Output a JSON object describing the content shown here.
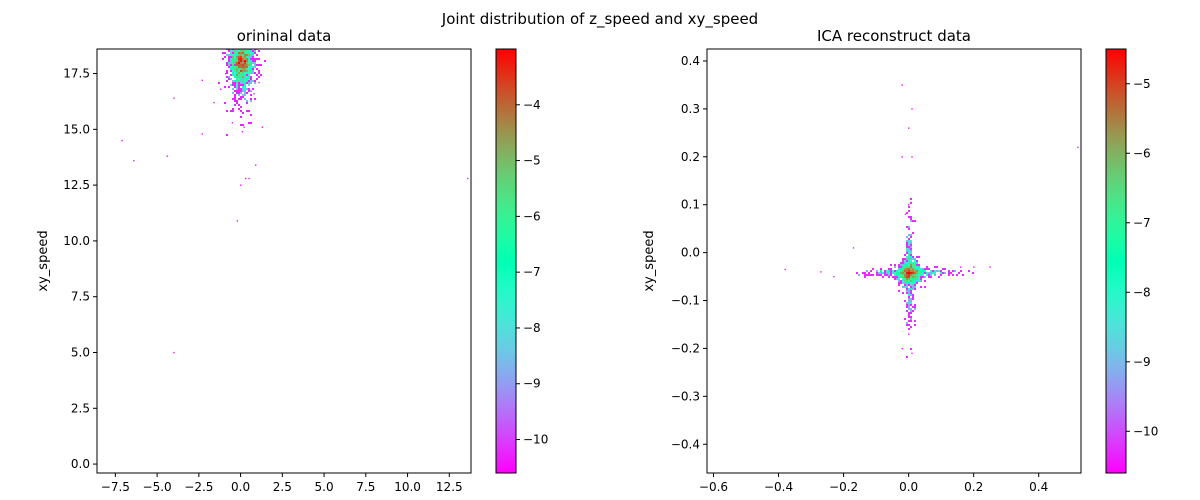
{
  "figure": {
    "suptitle": "Joint distribution of z_speed and xy_speed"
  },
  "chart_data": [
    {
      "type": "heatmap",
      "title": "orininal data",
      "xlabel": "",
      "ylabel": "xy_speed",
      "xlim": [
        -8.6,
        13.8
      ],
      "ylim": [
        -0.4,
        18.6
      ],
      "xticks": [
        -7.5,
        -5.0,
        -2.5,
        0.0,
        2.5,
        5.0,
        7.5,
        10.0,
        12.5
      ],
      "xtick_labels": [
        "−7.5",
        "−5.0",
        "−2.5",
        "0.0",
        "2.5",
        "5.0",
        "7.5",
        "10.0",
        "12.5"
      ],
      "yticks": [
        0.0,
        2.5,
        5.0,
        7.5,
        10.0,
        12.5,
        15.0,
        17.5
      ],
      "ytick_labels": [
        "0.0",
        "2.5",
        "5.0",
        "7.5",
        "10.0",
        "12.5",
        "15.0",
        "17.5"
      ],
      "colormap": "rainbow",
      "colorbar": {
        "range": [
          -10.6,
          -3.0
        ],
        "ticks": [
          -10,
          -9,
          -8,
          -7,
          -6,
          -5,
          -4
        ],
        "tick_labels": [
          "−10",
          "−9",
          "−8",
          "−7",
          "−6",
          "−5",
          "−4"
        ]
      },
      "grid": false,
      "density_center": [
        0.0,
        18.2
      ],
      "outlier_points": [
        [
          -7.1,
          14.5
        ],
        [
          -6.4,
          13.6
        ],
        [
          -4.4,
          13.8
        ],
        [
          -4.0,
          16.4
        ],
        [
          -4.0,
          5.0
        ],
        [
          -2.3,
          14.8
        ],
        [
          -2.3,
          17.2
        ],
        [
          -1.6,
          16.2
        ],
        [
          -0.2,
          10.9
        ],
        [
          0.0,
          12.5
        ],
        [
          0.3,
          12.8
        ],
        [
          0.5,
          12.8
        ],
        [
          0.1,
          14.9
        ],
        [
          0.2,
          15.1
        ],
        [
          -0.5,
          15.3
        ],
        [
          1.3,
          15.1
        ],
        [
          0.9,
          13.4
        ],
        [
          13.6,
          12.8
        ],
        [
          -1.2,
          16.8
        ],
        [
          0.8,
          16.6
        ],
        [
          -0.9,
          17.5
        ],
        [
          1.1,
          17.1
        ]
      ]
    },
    {
      "type": "heatmap",
      "title": "ICA reconstruct data",
      "xlabel": "",
      "ylabel": "xy_speed",
      "xlim": [
        -0.62,
        0.53
      ],
      "ylim": [
        -0.46,
        0.425
      ],
      "xticks": [
        -0.6,
        -0.4,
        -0.2,
        0.0,
        0.2,
        0.4
      ],
      "xtick_labels": [
        "−0.6",
        "−0.4",
        "−0.2",
        "0.0",
        "0.2",
        "0.4"
      ],
      "yticks": [
        -0.4,
        -0.3,
        -0.2,
        -0.1,
        0.0,
        0.1,
        0.2,
        0.3,
        0.4
      ],
      "ytick_labels": [
        "−0.4",
        "−0.3",
        "−0.2",
        "−0.1",
        "0.0",
        "0.1",
        "0.2",
        "0.3",
        "0.4"
      ],
      "colormap": "rainbow",
      "colorbar": {
        "range": [
          -10.6,
          -4.5
        ],
        "ticks": [
          -10,
          -9,
          -8,
          -7,
          -6,
          -5
        ],
        "tick_labels": [
          "−10",
          "−9",
          "−8",
          "−7",
          "−6",
          "−5"
        ]
      },
      "grid": false,
      "density_center": [
        0.0,
        -0.04
      ],
      "outlier_points": [
        [
          -0.38,
          -0.035
        ],
        [
          -0.27,
          -0.04
        ],
        [
          -0.23,
          -0.05
        ],
        [
          -0.17,
          0.01
        ],
        [
          0.16,
          -0.03
        ],
        [
          0.2,
          -0.03
        ],
        [
          0.25,
          -0.03
        ],
        [
          0.52,
          0.22
        ],
        [
          -0.02,
          0.35
        ],
        [
          0.01,
          0.3
        ],
        [
          0.0,
          0.26
        ],
        [
          -0.02,
          0.2
        ],
        [
          0.01,
          0.2
        ],
        [
          -0.02,
          -0.2
        ],
        [
          0.0,
          -0.17
        ],
        [
          0.01,
          -0.21
        ],
        [
          0.0,
          0.1
        ],
        [
          -0.01,
          0.08
        ]
      ]
    }
  ]
}
